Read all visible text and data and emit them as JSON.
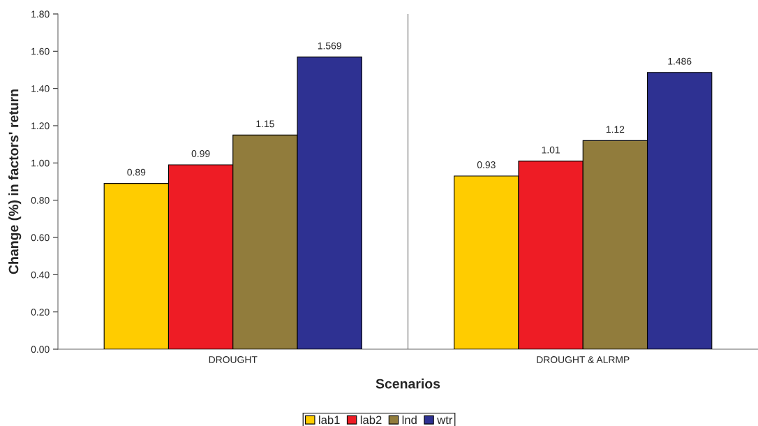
{
  "chart_data": {
    "type": "bar",
    "xlabel": "Scenarios",
    "ylabel": "Change (%) in factors' return",
    "categories": [
      "DROUGHT",
      "DROUGHT & ALRMP"
    ],
    "series": [
      {
        "name": "lab1",
        "color": "#ffcc00",
        "values": [
          0.89,
          0.93
        ]
      },
      {
        "name": "lab2",
        "color": "#ee1c25",
        "values": [
          0.99,
          1.01
        ]
      },
      {
        "name": "lnd",
        "color": "#917c3c",
        "values": [
          1.15,
          1.12
        ]
      },
      {
        "name": "wtr",
        "color": "#2e3192",
        "values": [
          1.569,
          1.486
        ]
      }
    ],
    "ylim": [
      0,
      1.8
    ],
    "yticks": [
      {
        "value": 0,
        "label": "0.00"
      },
      {
        "value": 0.2,
        "label": "0.20"
      },
      {
        "value": 0.4,
        "label": "0.40"
      },
      {
        "value": 0.6,
        "label": "0.60"
      },
      {
        "value": 0.8,
        "label": "0.80"
      },
      {
        "value": 1.0,
        "label": "1.00"
      },
      {
        "value": 1.2,
        "label": "1.20"
      },
      {
        "value": 1.4,
        "label": "1.40"
      },
      {
        "value": 1.6,
        "label": "1.60"
      },
      {
        "value": 1.8,
        "label": "1.80"
      }
    ],
    "data_labels": true,
    "grid": "x",
    "legend": "bottom"
  }
}
